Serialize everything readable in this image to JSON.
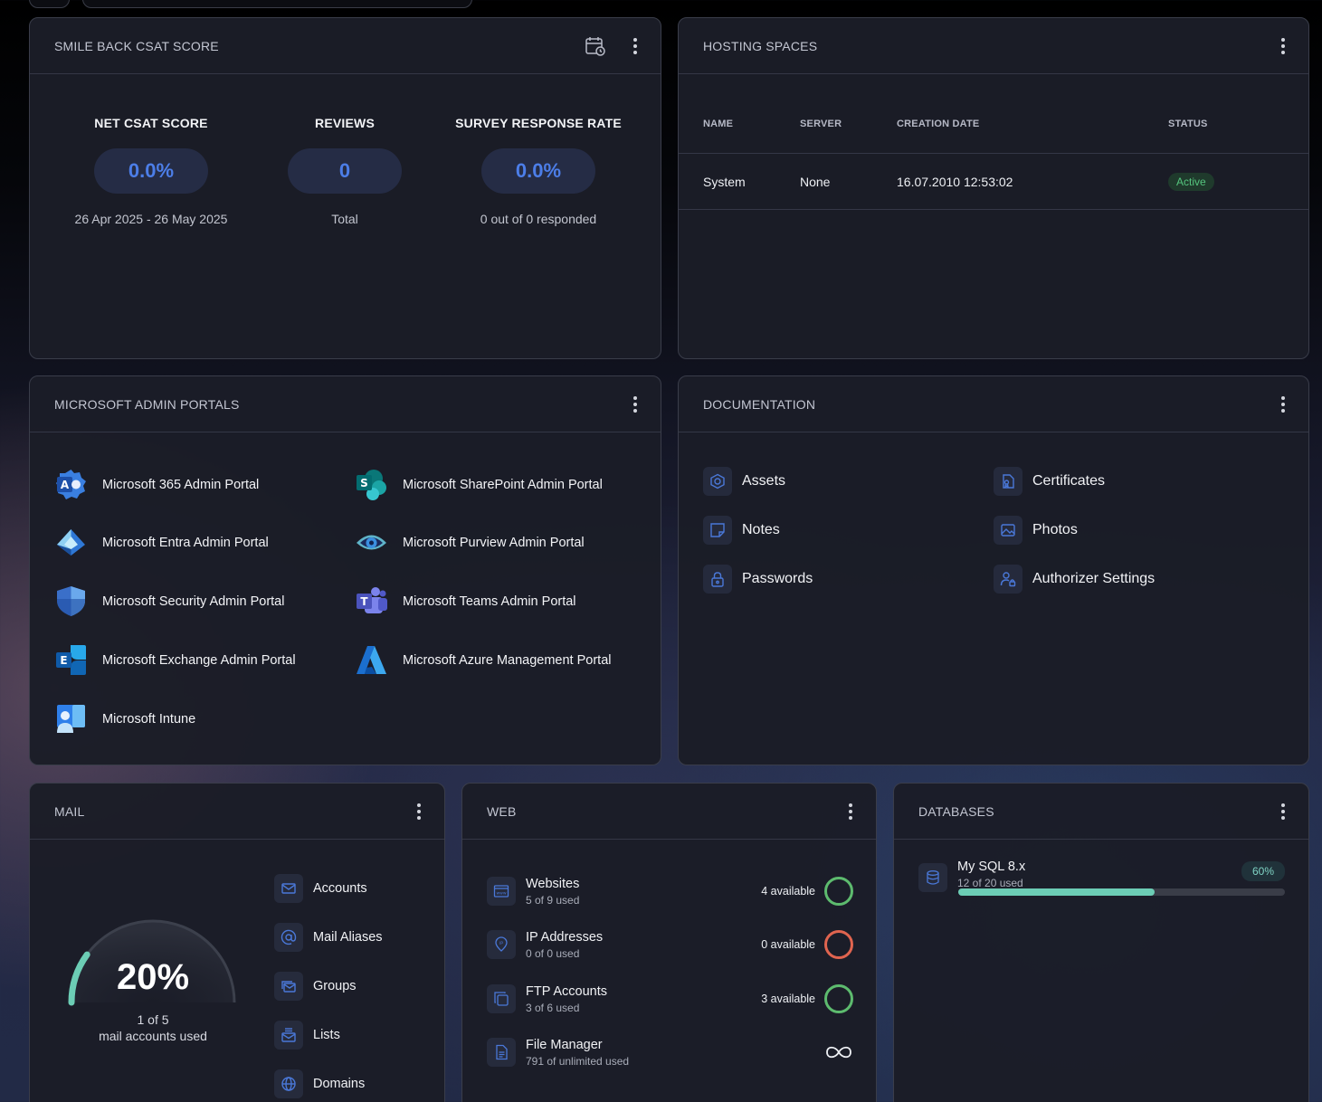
{
  "csat": {
    "title": "SMILE BACK CSAT SCORE",
    "calendar_icon": "calendar-clock-icon",
    "metrics": [
      {
        "label": "NET CSAT SCORE",
        "value": "0.0%",
        "sub": "26 Apr 2025 - 26 May 2025"
      },
      {
        "label": "REVIEWS",
        "value": "0",
        "sub": "Total"
      },
      {
        "label": "SURVEY RESPONSE RATE",
        "value": "0.0%",
        "sub": "0 out of 0 responded"
      }
    ]
  },
  "hosting": {
    "title": "HOSTING SPACES",
    "columns": [
      "NAME",
      "SERVER",
      "CREATION DATE",
      "STATUS"
    ],
    "rows": [
      {
        "name": "System",
        "server": "None",
        "date": "16.07.2010 12:53:02",
        "status": "Active"
      }
    ],
    "status_color": "#55c57e"
  },
  "portals": {
    "title": "MICROSOFT ADMIN PORTALS",
    "items": [
      {
        "label": "Microsoft 365 Admin Portal",
        "icon": "m365-admin-icon"
      },
      {
        "label": "Microsoft SharePoint Admin Portal",
        "icon": "sharepoint-icon"
      },
      {
        "label": "Microsoft Entra Admin Portal",
        "icon": "entra-icon"
      },
      {
        "label": "Microsoft Purview Admin Portal",
        "icon": "purview-icon"
      },
      {
        "label": "Microsoft Security Admin Portal",
        "icon": "security-shield-icon"
      },
      {
        "label": "Microsoft Teams Admin Portal",
        "icon": "teams-icon"
      },
      {
        "label": "Microsoft Exchange Admin Portal",
        "icon": "exchange-icon"
      },
      {
        "label": "Microsoft Azure Management Portal",
        "icon": "azure-icon"
      },
      {
        "label": "Microsoft Intune",
        "icon": "intune-icon"
      }
    ]
  },
  "documentation": {
    "title": "DOCUMENTATION",
    "items": [
      {
        "label": "Assets",
        "icon": "hexagon-icon"
      },
      {
        "label": "Certificates",
        "icon": "certificate-icon"
      },
      {
        "label": "Notes",
        "icon": "note-icon"
      },
      {
        "label": "Photos",
        "icon": "photo-icon"
      },
      {
        "label": "Passwords",
        "icon": "lock-icon"
      },
      {
        "label": "Authorizer Settings",
        "icon": "user-lock-icon"
      }
    ]
  },
  "mail": {
    "title": "MAIL",
    "gauge": {
      "percent": "20%",
      "count": "1 of 5",
      "caption": "mail accounts used",
      "fraction": 0.2,
      "color": "#6ccdb5"
    },
    "items": [
      {
        "label": "Accounts",
        "icon": "envelope-icon"
      },
      {
        "label": "Mail Aliases",
        "icon": "at-sign-icon"
      },
      {
        "label": "Groups",
        "icon": "mail-group-icon"
      },
      {
        "label": "Lists",
        "icon": "mail-list-icon"
      },
      {
        "label": "Domains",
        "icon": "globe-icon"
      }
    ]
  },
  "web": {
    "title": "WEB",
    "items": [
      {
        "name": "Websites",
        "sub": "5 of 9 used",
        "avail": "4 available",
        "ring": "#5dbb6e",
        "icon": "website-icon"
      },
      {
        "name": "IP Addresses",
        "sub": "0 of 0 used",
        "avail": "0 available",
        "ring": "#e0644f",
        "icon": "ip-pin-icon"
      },
      {
        "name": "FTP Accounts",
        "sub": "3 of 6 used",
        "avail": "3 available",
        "ring": "#5dbb6e",
        "icon": "ftp-icon"
      },
      {
        "name": "File Manager",
        "sub": "791 of unlimited used",
        "avail": "",
        "ring": "",
        "icon": "file-icon"
      }
    ],
    "infinity_icon": "infinity-icon"
  },
  "databases": {
    "title": "DATABASES",
    "items": [
      {
        "name": "My SQL 8.x",
        "sub": "12 of 20 used",
        "percent": "60%",
        "fraction": 0.6,
        "icon": "database-icon"
      }
    ]
  }
}
